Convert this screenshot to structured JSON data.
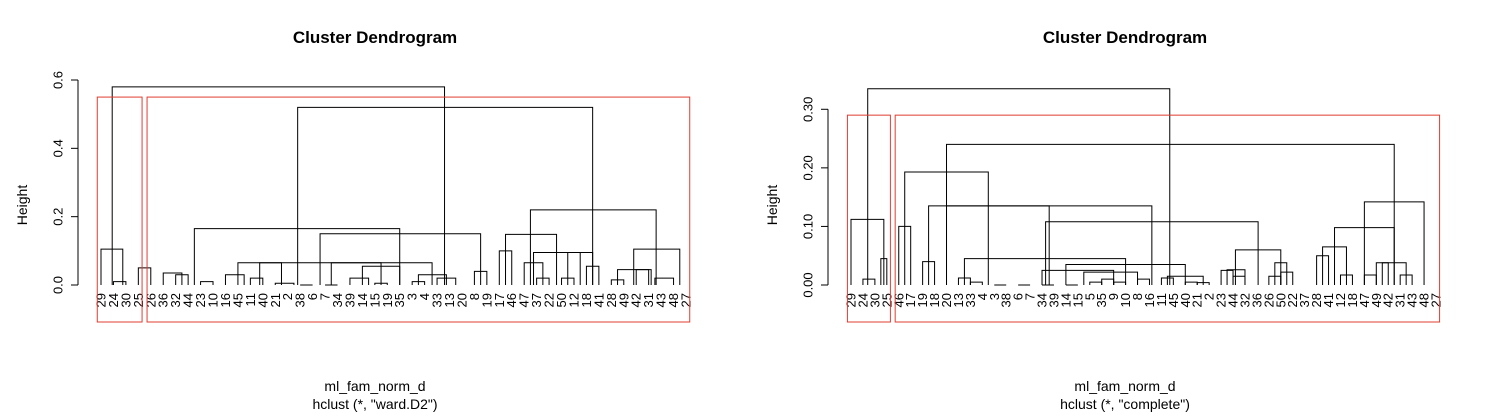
{
  "chart_data": [
    {
      "type": "dendrogram",
      "title": "Cluster Dendrogram",
      "xlabel": "ml_fam_norm_d",
      "sublabel": "hclust (*, \"ward.D2\")",
      "ylabel": "Height",
      "ylim": [
        0,
        0.6
      ],
      "y_ticks": [
        "0.0",
        "0.2",
        "0.4",
        "0.6"
      ],
      "y_tick_values": [
        0,
        0.2,
        0.4,
        0.6
      ],
      "leaf_order": [
        "29",
        "24",
        "30",
        "25",
        "26",
        "36",
        "32",
        "44",
        "23",
        "10",
        "16",
        "45",
        "11",
        "40",
        "21",
        "2",
        "38",
        "6",
        "7",
        "34",
        "39",
        "14",
        "15",
        "19",
        "35",
        "3",
        "4",
        "33",
        "13",
        "20",
        "8",
        "19",
        "17",
        "46",
        "47",
        "37",
        "22",
        "50",
        "12",
        "18",
        "41",
        "28",
        "49",
        "42",
        "31",
        "43",
        "48",
        "27"
      ],
      "merges": [
        {
          "l": 1,
          "r": 2,
          "h": 0.01
        },
        {
          "l": 3,
          "r": 4,
          "h": 0.05
        },
        {
          "l": 0,
          "r": 1.75,
          "h": 0.105
        },
        {
          "l": 5,
          "r": 6.5,
          "h": 0.035
        },
        {
          "l": 6,
          "r": 7,
          "h": 0.03
        },
        {
          "l": 8,
          "r": 9,
          "h": 0.01
        },
        {
          "l": 10,
          "r": 11.5,
          "h": 0.03
        },
        {
          "l": 12,
          "r": 13,
          "h": 0.02
        },
        {
          "l": 14,
          "r": 15.5,
          "h": 0.005
        },
        {
          "l": 11,
          "r": 14.5,
          "h": 0.065
        },
        {
          "l": 16,
          "r": 17,
          "h": 0.0
        },
        {
          "l": 18,
          "r": 19,
          "h": 0.0
        },
        {
          "l": 20,
          "r": 21.5,
          "h": 0.02
        },
        {
          "l": 22,
          "r": 23,
          "h": 0.005
        },
        {
          "l": 21,
          "r": 24,
          "h": 0.055
        },
        {
          "l": 25,
          "r": 26,
          "h": 0.01
        },
        {
          "l": 27,
          "r": 28.5,
          "h": 0.02
        },
        {
          "l": 25.5,
          "r": 27.75,
          "h": 0.03
        },
        {
          "l": 18.5,
          "r": 26.6,
          "h": 0.065
        },
        {
          "l": 12.75,
          "r": 22.5,
          "h": 0.065
        },
        {
          "l": 30,
          "r": 31,
          "h": 0.04
        },
        {
          "l": 17.6,
          "r": 30.5,
          "h": 0.15
        },
        {
          "l": 7.5,
          "r": 24.0,
          "h": 0.165
        },
        {
          "l": 32,
          "r": 33,
          "h": 0.1
        },
        {
          "l": 34,
          "r": 35.5,
          "h": 0.065
        },
        {
          "l": 35,
          "r": 36,
          "h": 0.02
        },
        {
          "l": 37,
          "r": 38,
          "h": 0.02
        },
        {
          "l": 39,
          "r": 40,
          "h": 0.055
        },
        {
          "l": 37.5,
          "r": 39.5,
          "h": 0.095
        },
        {
          "l": 34.75,
          "r": 38.5,
          "h": 0.095
        },
        {
          "l": 32.5,
          "r": 36.6,
          "h": 0.148
        },
        {
          "l": 41,
          "r": 42,
          "h": 0.015
        },
        {
          "l": 43,
          "r": 44,
          "h": 0.045
        },
        {
          "l": 44.5,
          "r": 46,
          "h": 0.02
        },
        {
          "l": 41.5,
          "r": 44.2,
          "h": 0.045
        },
        {
          "l": 42.8,
          "r": 46.5,
          "h": 0.105
        },
        {
          "l": 34.5,
          "r": 44.6,
          "h": 0.22
        },
        {
          "l": 15.8,
          "r": 39.5,
          "h": 0.52
        },
        {
          "l": 0.9,
          "r": 27.6,
          "h": 0.58
        }
      ],
      "cut_height": 0.55,
      "cut_boxes": [
        [
          0,
          3
        ],
        [
          4,
          47
        ]
      ],
      "cut_color": "#e03c31",
      "line_color": "#000000"
    },
    {
      "type": "dendrogram",
      "title": "Cluster Dendrogram",
      "xlabel": "ml_fam_norm_d",
      "sublabel": "hclust (*, \"complete\")",
      "ylabel": "Height",
      "ylim": [
        0,
        0.35
      ],
      "y_ticks": [
        "0.00",
        "0.10",
        "0.20",
        "0.30"
      ],
      "y_tick_values": [
        0,
        0.1,
        0.2,
        0.3
      ],
      "leaf_order": [
        "29",
        "24",
        "30",
        "25",
        "46",
        "17",
        "19",
        "18",
        "20",
        "13",
        "33",
        "4",
        "3",
        "38",
        "6",
        "7",
        "34",
        "39",
        "14",
        "15",
        "5",
        "35",
        "9",
        "10",
        "8",
        "16",
        "11",
        "45",
        "40",
        "21",
        "2",
        "23",
        "44",
        "32",
        "36",
        "26",
        "50",
        "22",
        "37",
        "28",
        "41",
        "12",
        "18",
        "47",
        "49",
        "42",
        "31",
        "43",
        "48",
        "27"
      ],
      "merges": [
        {
          "l": 1,
          "r": 2,
          "h": 0.01
        },
        {
          "l": 2.5,
          "r": 3,
          "h": 0.045
        },
        {
          "l": 0,
          "r": 2.75,
          "h": 0.112
        },
        {
          "l": 4,
          "r": 5,
          "h": 0.1
        },
        {
          "l": 6,
          "r": 7,
          "h": 0.04
        },
        {
          "l": 9,
          "r": 10,
          "h": 0.012
        },
        {
          "l": 10,
          "r": 11,
          "h": 0.005
        },
        {
          "l": 12,
          "r": 13,
          "h": 0.0
        },
        {
          "l": 14,
          "r": 15,
          "h": 0.0
        },
        {
          "l": 16,
          "r": 17,
          "h": 0.0
        },
        {
          "l": 18,
          "r": 19,
          "h": 0.0
        },
        {
          "l": 20,
          "r": 21,
          "h": 0.005
        },
        {
          "l": 21,
          "r": 22,
          "h": 0.01
        },
        {
          "l": 22,
          "r": 23,
          "h": 0.005
        },
        {
          "l": 24,
          "r": 25,
          "h": 0.01
        },
        {
          "l": 26,
          "r": 27,
          "h": 0.012
        },
        {
          "l": 28,
          "r": 29,
          "h": 0.005
        },
        {
          "l": 29,
          "r": 30,
          "h": 0.004
        },
        {
          "l": 19.5,
          "r": 24,
          "h": 0.022
        },
        {
          "l": 16,
          "r": 22,
          "h": 0.025
        },
        {
          "l": 26.5,
          "r": 29.5,
          "h": 0.015
        },
        {
          "l": 18,
          "r": 28,
          "h": 0.035
        },
        {
          "l": 9.5,
          "r": 23,
          "h": 0.045
        },
        {
          "l": 31,
          "r": 32,
          "h": 0.025
        },
        {
          "l": 32,
          "r": 33,
          "h": 0.015
        },
        {
          "l": 31.5,
          "r": 33,
          "h": 0.026
        },
        {
          "l": 35,
          "r": 36,
          "h": 0.015
        },
        {
          "l": 36,
          "r": 37,
          "h": 0.022
        },
        {
          "l": 35.5,
          "r": 36.5,
          "h": 0.038
        },
        {
          "l": 32.2,
          "r": 36,
          "h": 0.06
        },
        {
          "l": 16.3,
          "r": 34.1,
          "h": 0.108
        },
        {
          "l": 8,
          "r": 25.2,
          "h": 0.135
        },
        {
          "l": 6.5,
          "r": 16.6,
          "h": 0.135
        },
        {
          "l": 4.5,
          "r": 11.5,
          "h": 0.193
        },
        {
          "l": 39,
          "r": 40,
          "h": 0.05
        },
        {
          "l": 41,
          "r": 42,
          "h": 0.017
        },
        {
          "l": 39.5,
          "r": 41.5,
          "h": 0.065
        },
        {
          "l": 43,
          "r": 44,
          "h": 0.017
        },
        {
          "l": 44,
          "r": 45,
          "h": 0.038
        },
        {
          "l": 46,
          "r": 47,
          "h": 0.017
        },
        {
          "l": 44.5,
          "r": 46.5,
          "h": 0.038
        },
        {
          "l": 40.5,
          "r": 45.5,
          "h": 0.098
        },
        {
          "l": 43,
          "r": 48,
          "h": 0.142
        },
        {
          "l": 8.0,
          "r": 45.5,
          "h": 0.24
        },
        {
          "l": 1.4,
          "r": 26.7,
          "h": 0.335
        }
      ],
      "cut_height": 0.29,
      "cut_boxes": [
        [
          0,
          3
        ],
        [
          4,
          49
        ]
      ],
      "cut_color": "#e03c31",
      "line_color": "#000000"
    }
  ]
}
